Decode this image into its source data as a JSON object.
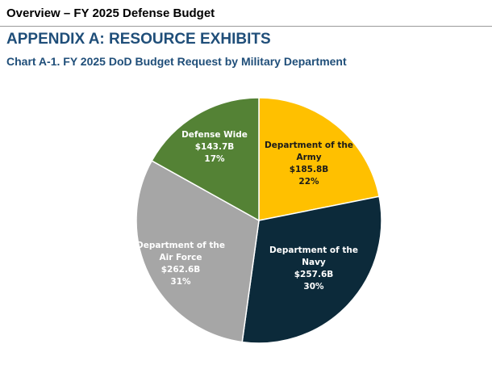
{
  "page": {
    "header": "Overview – FY 2025 Defense Budget",
    "appendix_title": "APPENDIX A: RESOURCE EXHIBITS",
    "chart_title": "Chart A-1.  FY 2025 DoD Budget Request by Military Department"
  },
  "chart_data": {
    "type": "pie",
    "title": "Chart A-1.  FY 2025 DoD Budget Request by Military Department",
    "slices": [
      {
        "lines": [
          "Department of the",
          "Army"
        ],
        "value_text": "$185.8B",
        "percent_text": "22%",
        "value": 185.8,
        "color": "#ffc000",
        "text_color": "#1a1a1a"
      },
      {
        "lines": [
          "Department of the",
          "Navy"
        ],
        "value_text": "$257.6B",
        "percent_text": "30%",
        "value": 257.6,
        "color": "#0c2a3a",
        "text_color": "#ffffff"
      },
      {
        "lines": [
          "Department of the",
          "Air Force"
        ],
        "value_text": "$262.6B",
        "percent_text": "31%",
        "value": 262.6,
        "color": "#a6a6a6",
        "text_color": "#ffffff"
      },
      {
        "lines": [
          "Defense Wide"
        ],
        "value_text": "$143.7B",
        "percent_text": "17%",
        "value": 143.7,
        "color": "#548235",
        "text_color": "#ffffff"
      }
    ]
  }
}
